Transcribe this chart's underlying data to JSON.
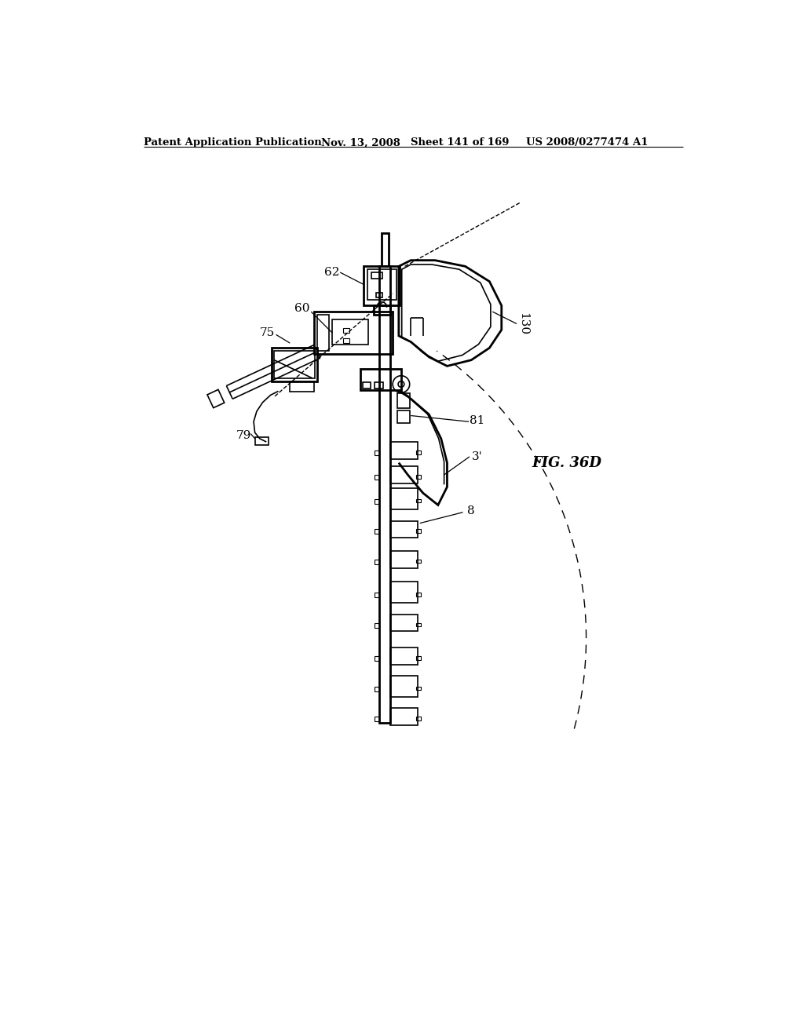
{
  "bg_color": "#ffffff",
  "line_color": "#000000",
  "header_text": "Patent Application Publication",
  "header_date": "Nov. 13, 2008",
  "header_sheet": "Sheet 141 of 169",
  "header_patent": "US 2008/0277474 A1",
  "fig_label": "FIG. 36D"
}
